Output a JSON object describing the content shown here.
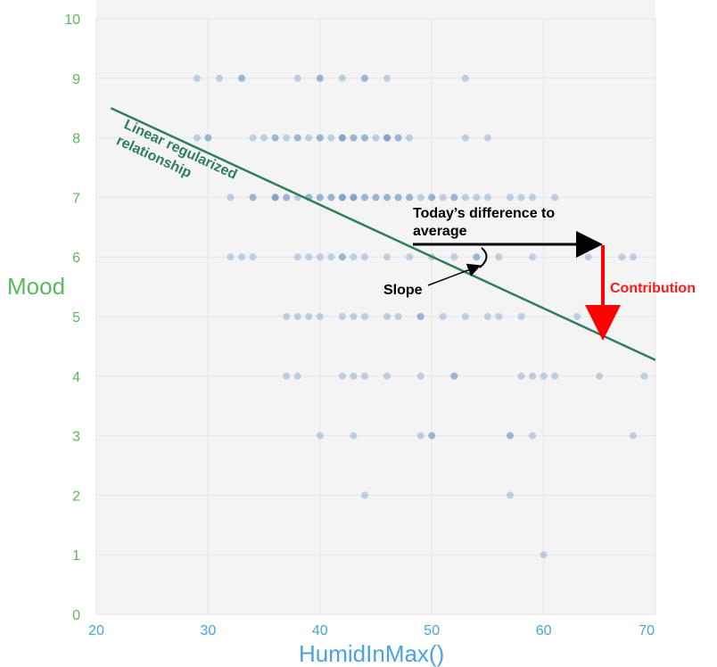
{
  "chart_data": {
    "type": "scatter",
    "xlabel": "HumidInMax()",
    "ylabel": "Mood",
    "xlim": [
      20,
      70
    ],
    "ylim": [
      0,
      10
    ],
    "x_ticks": [
      "20",
      "30",
      "40",
      "50",
      "60",
      "70"
    ],
    "y_ticks": [
      "0",
      "1",
      "2",
      "3",
      "4",
      "5",
      "6",
      "7",
      "8",
      "9",
      "10"
    ],
    "grid": true,
    "point_color": "#4a7fb5",
    "line_color": "#2e7d5b",
    "arrow_black_color": "#000000",
    "arrow_red_color": "#ff0000",
    "points": [
      [
        29,
        9
      ],
      [
        31,
        9
      ],
      [
        33,
        9
      ],
      [
        33,
        9
      ],
      [
        38,
        9
      ],
      [
        40,
        9
      ],
      [
        40,
        9
      ],
      [
        42,
        9
      ],
      [
        44,
        9
      ],
      [
        44,
        9
      ],
      [
        46,
        9
      ],
      [
        53,
        9
      ],
      [
        29,
        8
      ],
      [
        30,
        8
      ],
      [
        30,
        8
      ],
      [
        34,
        8
      ],
      [
        35,
        8
      ],
      [
        36,
        8
      ],
      [
        36,
        8
      ],
      [
        37,
        8
      ],
      [
        38,
        8
      ],
      [
        38,
        8
      ],
      [
        39,
        8
      ],
      [
        40,
        8
      ],
      [
        40,
        8
      ],
      [
        41,
        8
      ],
      [
        42,
        8
      ],
      [
        42,
        8
      ],
      [
        42,
        8
      ],
      [
        43,
        8
      ],
      [
        43,
        8
      ],
      [
        44,
        8
      ],
      [
        44,
        8
      ],
      [
        45,
        8
      ],
      [
        46,
        8
      ],
      [
        46,
        8
      ],
      [
        46,
        8
      ],
      [
        47,
        8
      ],
      [
        47,
        8
      ],
      [
        48,
        8
      ],
      [
        53,
        8
      ],
      [
        55,
        8
      ],
      [
        32,
        7
      ],
      [
        34,
        7
      ],
      [
        34,
        7
      ],
      [
        36,
        7
      ],
      [
        36,
        7
      ],
      [
        36,
        7
      ],
      [
        37,
        7
      ],
      [
        37,
        7
      ],
      [
        38,
        7
      ],
      [
        39,
        7
      ],
      [
        39,
        7
      ],
      [
        40,
        7
      ],
      [
        40,
        7
      ],
      [
        41,
        7
      ],
      [
        41,
        7
      ],
      [
        42,
        7
      ],
      [
        42,
        7
      ],
      [
        42,
        7
      ],
      [
        43,
        7
      ],
      [
        43,
        7
      ],
      [
        43,
        7
      ],
      [
        44,
        7
      ],
      [
        44,
        7
      ],
      [
        45,
        7
      ],
      [
        45,
        7
      ],
      [
        46,
        7
      ],
      [
        46,
        7
      ],
      [
        47,
        7
      ],
      [
        47,
        7
      ],
      [
        48,
        7
      ],
      [
        48,
        7
      ],
      [
        49,
        7
      ],
      [
        50,
        7
      ],
      [
        50,
        7
      ],
      [
        51,
        7
      ],
      [
        52,
        7
      ],
      [
        52,
        7
      ],
      [
        53,
        7
      ],
      [
        54,
        7
      ],
      [
        55,
        7
      ],
      [
        57,
        7
      ],
      [
        58,
        7
      ],
      [
        59,
        7
      ],
      [
        61,
        7
      ],
      [
        32,
        6
      ],
      [
        33,
        6
      ],
      [
        34,
        6
      ],
      [
        38,
        6
      ],
      [
        39,
        6
      ],
      [
        40,
        6
      ],
      [
        41,
        6
      ],
      [
        42,
        6
      ],
      [
        42,
        6
      ],
      [
        43,
        6
      ],
      [
        44,
        6
      ],
      [
        46,
        6
      ],
      [
        48,
        6
      ],
      [
        50,
        6
      ],
      [
        52,
        6
      ],
      [
        54,
        6
      ],
      [
        54,
        6
      ],
      [
        56,
        6
      ],
      [
        59,
        6
      ],
      [
        64,
        6
      ],
      [
        67,
        6
      ],
      [
        68,
        6
      ],
      [
        37,
        5
      ],
      [
        38,
        5
      ],
      [
        39,
        5
      ],
      [
        40,
        5
      ],
      [
        42,
        5
      ],
      [
        43,
        5
      ],
      [
        44,
        5
      ],
      [
        46,
        5
      ],
      [
        47,
        5
      ],
      [
        49,
        5
      ],
      [
        49,
        5
      ],
      [
        51,
        5
      ],
      [
        53,
        5
      ],
      [
        55,
        5
      ],
      [
        56,
        5
      ],
      [
        58,
        5
      ],
      [
        63,
        5
      ],
      [
        37,
        4
      ],
      [
        38,
        4
      ],
      [
        42,
        4
      ],
      [
        43,
        4
      ],
      [
        44,
        4
      ],
      [
        46,
        4
      ],
      [
        49,
        4
      ],
      [
        52,
        4
      ],
      [
        52,
        4
      ],
      [
        58,
        4
      ],
      [
        59,
        4
      ],
      [
        60,
        4
      ],
      [
        61,
        4
      ],
      [
        65,
        4
      ],
      [
        69,
        4
      ],
      [
        40,
        3
      ],
      [
        43,
        3
      ],
      [
        49,
        3
      ],
      [
        50,
        3
      ],
      [
        50,
        3
      ],
      [
        57,
        3
      ],
      [
        57,
        3
      ],
      [
        59,
        3
      ],
      [
        68,
        3
      ],
      [
        44,
        2
      ],
      [
        57,
        2
      ],
      [
        60,
        1
      ]
    ],
    "regression_line": {
      "x": [
        21.3,
        70
      ],
      "y": [
        8.5,
        4.27
      ]
    },
    "annotations": {
      "line_label": "Linear regularized\nrelationship",
      "difference_label": "Today’s difference to\naverage",
      "contribution_label": "Contribution",
      "slope_label": "Slope"
    }
  }
}
